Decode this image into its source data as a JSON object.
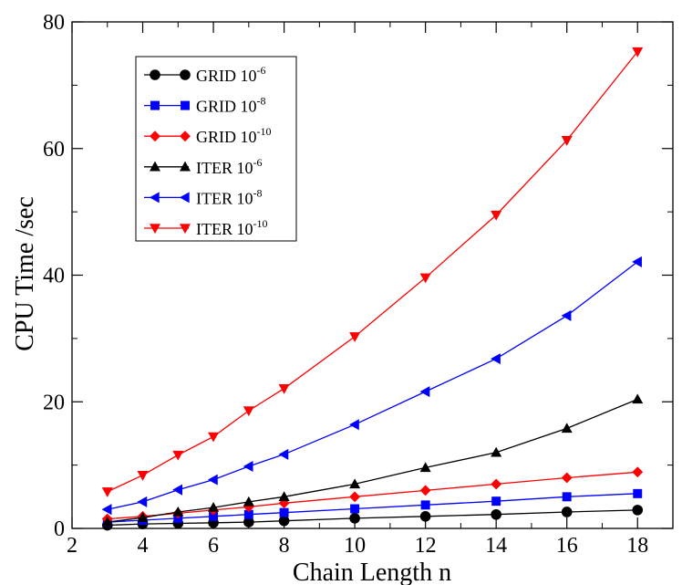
{
  "chart_data": {
    "type": "line",
    "xlabel": "Chain Length n",
    "ylabel": "CPU Time /sec",
    "xlim": [
      2,
      19
    ],
    "ylim": [
      0,
      80
    ],
    "xticks": [
      2,
      4,
      6,
      8,
      10,
      12,
      14,
      16,
      18
    ],
    "yticks": [
      0,
      20,
      40,
      60,
      80
    ],
    "grid": false,
    "legend_position": "top-left",
    "x": [
      3,
      4,
      5,
      6,
      7,
      8,
      10,
      12,
      14,
      16,
      18
    ],
    "series": [
      {
        "name": "GRID 10",
        "exponent": "-6",
        "color": "#000000",
        "marker": "circle",
        "values": [
          0.5,
          0.7,
          0.8,
          0.9,
          1.0,
          1.2,
          1.6,
          1.9,
          2.2,
          2.6,
          2.9
        ]
      },
      {
        "name": "GRID 10",
        "exponent": "-8",
        "color": "#0000ff",
        "marker": "square",
        "values": [
          1.0,
          1.3,
          1.6,
          1.9,
          2.2,
          2.5,
          3.1,
          3.7,
          4.3,
          5.0,
          5.5
        ]
      },
      {
        "name": "GRID 10",
        "exponent": "-10",
        "color": "#ff0000",
        "marker": "diamond",
        "values": [
          1.5,
          1.9,
          2.4,
          2.9,
          3.4,
          4.0,
          5.0,
          6.0,
          7.0,
          8.0,
          8.9
        ]
      },
      {
        "name": "ITER 10",
        "exponent": "-6",
        "color": "#000000",
        "marker": "triangle-up",
        "values": [
          1.0,
          1.7,
          2.6,
          3.3,
          4.2,
          5.0,
          7.0,
          9.6,
          12.0,
          15.8,
          20.4
        ]
      },
      {
        "name": "ITER 10",
        "exponent": "-8",
        "color": "#0000ff",
        "marker": "triangle-left",
        "values": [
          3.0,
          4.2,
          6.1,
          7.7,
          9.8,
          11.7,
          16.4,
          21.6,
          26.8,
          33.6,
          42.1
        ]
      },
      {
        "name": "ITER 10",
        "exponent": "-10",
        "color": "#ff0000",
        "marker": "triangle-down",
        "values": [
          5.8,
          8.4,
          11.6,
          14.5,
          18.6,
          22.1,
          30.3,
          39.6,
          49.5,
          61.3,
          75.3
        ]
      }
    ]
  }
}
